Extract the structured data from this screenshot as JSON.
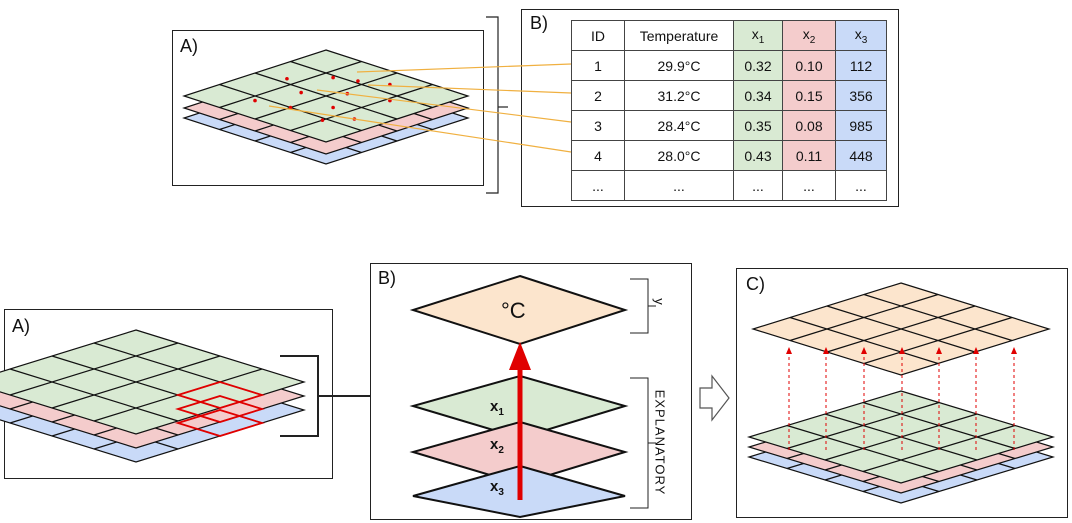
{
  "top": {
    "panel_a_label": "A)",
    "panel_b_label": "B)",
    "table": {
      "headers": [
        "ID",
        "Temperature",
        "x",
        "x",
        "x"
      ],
      "header_subs": [
        "",
        "",
        "1",
        "2",
        "3"
      ],
      "rows": [
        [
          "1",
          "29.9°C",
          "0.32",
          "0.10",
          "112"
        ],
        [
          "2",
          "31.2°C",
          "0.34",
          "0.15",
          "356"
        ],
        [
          "3",
          "28.4°C",
          "0.35",
          "0.08",
          "985"
        ],
        [
          "4",
          "28.0°C",
          "0.43",
          "0.11",
          "448"
        ],
        [
          "...",
          "...",
          "...",
          "...",
          "..."
        ]
      ]
    }
  },
  "bottom": {
    "panel_a_label": "A)",
    "panel_b_label": "B)",
    "panel_c_label": "C)",
    "response_symbol": "°C",
    "response_tag": "y",
    "explanatory_label": "EXPLANATORY",
    "layers": [
      {
        "base": "x",
        "sub": "1"
      },
      {
        "base": "x",
        "sub": "2"
      },
      {
        "base": "x",
        "sub": "3"
      }
    ]
  },
  "colors": {
    "green": "#d9ead3",
    "red": "#f4cccc",
    "blue": "#c9daf8",
    "orange": "#fce5cd",
    "accent_red": "#e00000",
    "link_orange": "#f0b040"
  }
}
